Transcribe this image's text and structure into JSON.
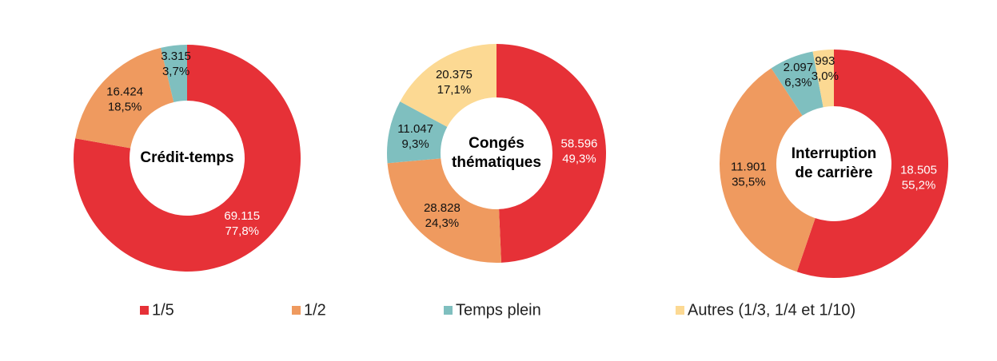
{
  "legend": {
    "items": [
      {
        "name": "1/5",
        "color": "#e63137"
      },
      {
        "name": "1/2",
        "color": "#ef9a5f"
      },
      {
        "name": "Temps plein",
        "color": "#7fbfbf"
      },
      {
        "name": "Autres (1/3, 1/4 et 1/10)",
        "color": "#fcd993"
      }
    ]
  },
  "chart_data": [
    {
      "type": "pie",
      "title": [
        "Crédit-temps"
      ],
      "categories": [
        "1/5",
        "1/2",
        "Temps plein"
      ],
      "values": [
        69115,
        16424,
        3315
      ],
      "value_labels": [
        "69.115",
        "16.424",
        "3.315"
      ],
      "shares": [
        77.8,
        18.5,
        3.7
      ],
      "share_labels": [
        "77,8%",
        "18,5%",
        "3,7%"
      ],
      "colors": [
        "#e63137",
        "#ef9a5f",
        "#7fbfbf"
      ]
    },
    {
      "type": "pie",
      "title": [
        "Congés",
        "thématiques"
      ],
      "categories": [
        "1/5",
        "1/2",
        "Temps plein",
        "Autres (1/3, 1/4 et 1/10)"
      ],
      "values": [
        58596,
        28828,
        11047,
        20375
      ],
      "value_labels": [
        "58.596",
        "28.828",
        "11.047",
        "20.375"
      ],
      "shares": [
        49.3,
        24.3,
        9.3,
        17.1
      ],
      "share_labels": [
        "49,3%",
        "24,3%",
        "9,3%",
        "17,1%"
      ],
      "colors": [
        "#e63137",
        "#ef9a5f",
        "#7fbfbf",
        "#fcd993"
      ]
    },
    {
      "type": "pie",
      "title": [
        "Interruption",
        "de carrière"
      ],
      "categories": [
        "1/5",
        "1/2",
        "Temps plein",
        "Autres (1/3, 1/4 et 1/10)"
      ],
      "values": [
        18505,
        11901,
        2097,
        993
      ],
      "value_labels": [
        "18.505",
        "11.901",
        "2.097",
        "993"
      ],
      "shares": [
        55.2,
        35.5,
        6.3,
        3.0
      ],
      "share_labels": [
        "55,2%",
        "35,5%",
        "6,3%",
        "3,0%"
      ],
      "colors": [
        "#e63137",
        "#ef9a5f",
        "#7fbfbf",
        "#fcd993"
      ]
    }
  ]
}
